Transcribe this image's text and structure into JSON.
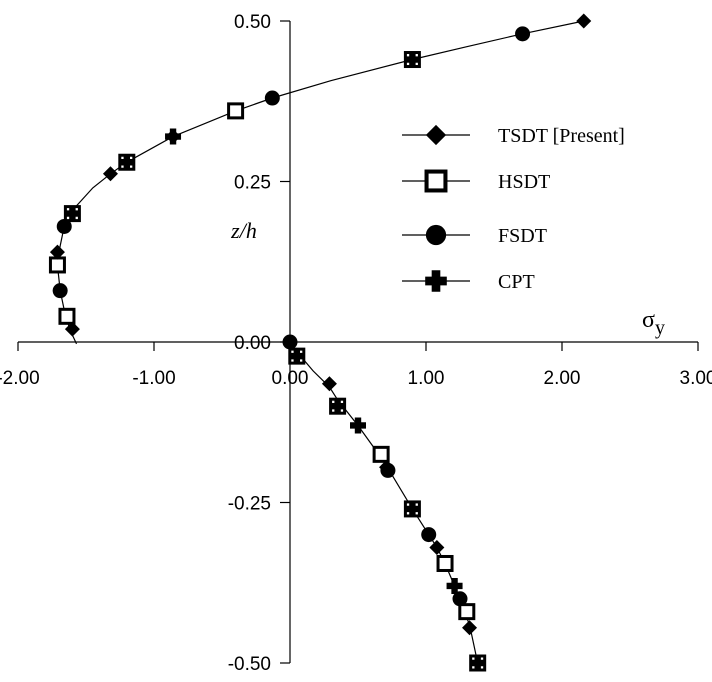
{
  "chart_data": {
    "type": "line",
    "xlim": [
      -2.0,
      3.0
    ],
    "ylim": [
      -0.5,
      0.5
    ],
    "x_ticks": [
      -2.0,
      -1.0,
      0.0,
      1.0,
      2.0,
      3.0
    ],
    "x_tick_labels": [
      "-2.00",
      "-1.00",
      "0.00",
      "1.00",
      "2.00",
      "3.00"
    ],
    "y_ticks": [
      0.5,
      0.25,
      0.0,
      -0.25,
      -0.5
    ],
    "y_tick_labels": [
      "0.50",
      "0.25",
      "0.00",
      "-0.25",
      "-0.50"
    ],
    "xlabel": "σ",
    "xlabel_subscript": "y",
    "ylabel": "z/h",
    "grid": false,
    "legend_position": "right",
    "curve": [
      {
        "x": -1.57,
        "y": -0.003
      },
      {
        "x": -1.62,
        "y": 0.02
      },
      {
        "x": -1.66,
        "y": 0.05
      },
      {
        "x": -1.69,
        "y": 0.08
      },
      {
        "x": -1.71,
        "y": 0.12
      },
      {
        "x": -1.69,
        "y": 0.15
      },
      {
        "x": -1.66,
        "y": 0.18
      },
      {
        "x": -1.6,
        "y": 0.205
      },
      {
        "x": -1.45,
        "y": 0.24
      },
      {
        "x": -1.32,
        "y": 0.262
      },
      {
        "x": -1.2,
        "y": 0.28
      },
      {
        "x": -0.86,
        "y": 0.32
      },
      {
        "x": -0.4,
        "y": 0.36
      },
      {
        "x": -0.13,
        "y": 0.38
      },
      {
        "x": 0.3,
        "y": 0.407
      },
      {
        "x": 0.9,
        "y": 0.44
      },
      {
        "x": 1.3,
        "y": 0.46
      },
      {
        "x": 1.71,
        "y": 0.48
      },
      {
        "x": 2.16,
        "y": 0.5
      }
    ],
    "curve_lower": [
      {
        "x": 0.0,
        "y": 0.0
      },
      {
        "x": 0.05,
        "y": -0.015
      },
      {
        "x": 0.17,
        "y": -0.045
      },
      {
        "x": 0.29,
        "y": -0.07
      },
      {
        "x": 0.35,
        "y": -0.09
      },
      {
        "x": 0.5,
        "y": -0.13
      },
      {
        "x": 0.67,
        "y": -0.18
      },
      {
        "x": 0.73,
        "y": -0.2
      },
      {
        "x": 0.9,
        "y": -0.26
      },
      {
        "x": 1.02,
        "y": -0.3
      },
      {
        "x": 1.08,
        "y": -0.32
      },
      {
        "x": 1.14,
        "y": -0.345
      },
      {
        "x": 1.21,
        "y": -0.38
      },
      {
        "x": 1.25,
        "y": -0.4
      },
      {
        "x": 1.28,
        "y": -0.42
      },
      {
        "x": 1.32,
        "y": -0.44
      },
      {
        "x": 1.38,
        "y": -0.5
      }
    ],
    "series": [
      {
        "name": "TSDT [Present]",
        "marker": "diamond",
        "points": [
          {
            "x": 2.16,
            "y": 0.5
          },
          {
            "x": -0.86,
            "y": 0.32
          },
          {
            "x": -1.32,
            "y": 0.262
          },
          {
            "x": -1.71,
            "y": 0.14
          },
          {
            "x": -1.6,
            "y": 0.02
          },
          {
            "x": 0.29,
            "y": -0.065
          },
          {
            "x": 0.71,
            "y": -0.195
          },
          {
            "x": 1.08,
            "y": -0.32
          },
          {
            "x": 1.32,
            "y": -0.445
          }
        ]
      },
      {
        "name": "HSDT",
        "marker": "open-square",
        "points": [
          {
            "x": 0.9,
            "y": 0.44
          },
          {
            "x": -0.4,
            "y": 0.36
          },
          {
            "x": -1.2,
            "y": 0.28
          },
          {
            "x": -1.6,
            "y": 0.2
          },
          {
            "x": -1.71,
            "y": 0.12
          },
          {
            "x": -1.64,
            "y": 0.04
          },
          {
            "x": 0.05,
            "y": -0.022
          },
          {
            "x": 0.35,
            "y": -0.1
          },
          {
            "x": 0.67,
            "y": -0.175
          },
          {
            "x": 0.9,
            "y": -0.26
          },
          {
            "x": 1.14,
            "y": -0.345
          },
          {
            "x": 1.3,
            "y": -0.42
          },
          {
            "x": 1.38,
            "y": -0.5
          }
        ]
      },
      {
        "name": "FSDT",
        "marker": "circle",
        "points": [
          {
            "x": 1.71,
            "y": 0.48
          },
          {
            "x": -0.13,
            "y": 0.38
          },
          {
            "x": -1.66,
            "y": 0.18
          },
          {
            "x": -1.69,
            "y": 0.08
          },
          {
            "x": 0.0,
            "y": 0.0
          },
          {
            "x": 0.72,
            "y": -0.2
          },
          {
            "x": 1.02,
            "y": -0.3
          },
          {
            "x": 1.25,
            "y": -0.4
          }
        ]
      },
      {
        "name": "CPT",
        "marker": "plus",
        "points": [
          {
            "x": 0.9,
            "y": 0.44
          },
          {
            "x": -0.86,
            "y": 0.32
          },
          {
            "x": -1.2,
            "y": 0.28
          },
          {
            "x": -1.6,
            "y": 0.2
          },
          {
            "x": 0.05,
            "y": -0.022
          },
          {
            "x": 0.35,
            "y": -0.1
          },
          {
            "x": 0.5,
            "y": -0.13
          },
          {
            "x": 0.9,
            "y": -0.26
          },
          {
            "x": 1.21,
            "y": -0.38
          },
          {
            "x": 1.38,
            "y": -0.5
          }
        ]
      }
    ]
  }
}
